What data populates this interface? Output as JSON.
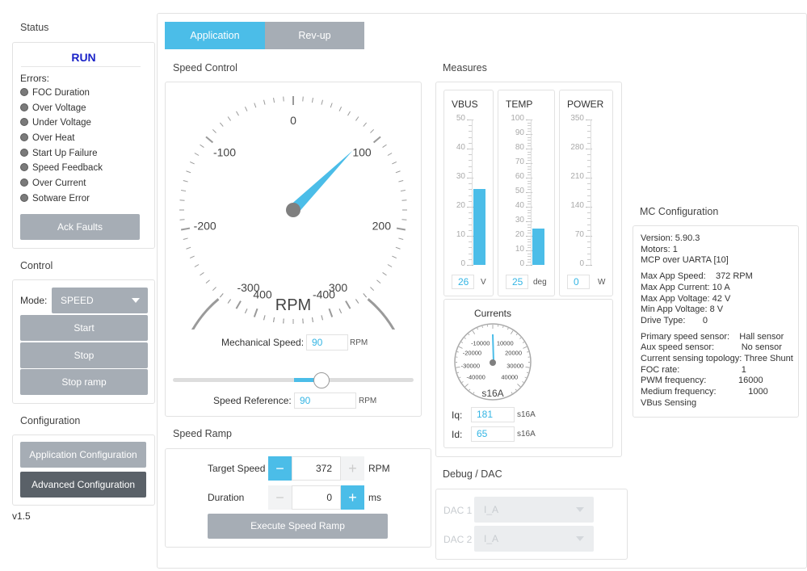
{
  "status": {
    "title": "Status",
    "state": "RUN",
    "errors_label": "Errors:",
    "errors": [
      "FOC Duration",
      "Over Voltage",
      "Under Voltage",
      "Over Heat",
      "Start Up Failure",
      "Speed Feedback",
      "Over Current",
      "Sotware Error"
    ],
    "ack_label": "Ack Faults"
  },
  "control": {
    "title": "Control",
    "mode_label": "Mode:",
    "mode_value": "SPEED",
    "start_label": "Start",
    "stop_label": "Stop",
    "stop_ramp_label": "Stop ramp"
  },
  "configuration": {
    "title": "Configuration",
    "app_config_label": "Application Configuration",
    "adv_config_label": "Advanced Configuration"
  },
  "version": "v1.5",
  "tabs": [
    {
      "label": "Application"
    },
    {
      "label": "Rev-up"
    }
  ],
  "speed_control": {
    "title": "Speed Control",
    "gauge_ticks": [
      "0",
      "100",
      "200",
      "300",
      "400",
      "-100",
      "-200",
      "-300",
      "-400"
    ],
    "gauge_unit": "RPM",
    "gauge_value": 90,
    "mech_label": "Mechanical Speed:",
    "mech_value": "90",
    "mech_unit": "RPM",
    "ref_label": "Speed Reference:",
    "ref_value": "90",
    "ref_unit": "RPM",
    "slider_value": 90
  },
  "speed_ramp": {
    "title": "Speed Ramp",
    "target_label": "Target Speed",
    "target_value": "372",
    "target_unit": "RPM",
    "duration_label": "Duration",
    "duration_value": "0",
    "duration_unit": "ms",
    "execute_label": "Execute Speed Ramp",
    "minus": "−",
    "plus": "+"
  },
  "measures": {
    "title": "Measures",
    "vbus": {
      "label": "VBUS",
      "ticks": [
        "50",
        "40",
        "30",
        "20",
        "10",
        "0"
      ],
      "value": "26",
      "unit": "V",
      "level": 26,
      "max": 50
    },
    "temp": {
      "label": "TEMP",
      "ticks": [
        "100",
        "90",
        "80",
        "70",
        "60",
        "50",
        "40",
        "30",
        "20",
        "10",
        "0"
      ],
      "value": "25",
      "unit": "deg",
      "level": 25,
      "max": 100
    },
    "power": {
      "label": "POWER",
      "ticks": [
        "350",
        "280",
        "210",
        "140",
        "70",
        "0"
      ],
      "value": "0",
      "unit": "W",
      "level": 0,
      "max": 350
    }
  },
  "currents": {
    "title": "Currents",
    "ticks": [
      "-10000",
      "10000",
      "-20000",
      "20000",
      "-30000",
      "30000",
      "-40000",
      "40000"
    ],
    "unit": "s16A",
    "iq_label": "Iq:",
    "iq_value": "181",
    "iq_unit": "s16A",
    "id_label": "Id:",
    "id_value": "65",
    "id_unit": "s16A"
  },
  "debug": {
    "title": "Debug / DAC",
    "dac1_label": "DAC 1",
    "dac1_value": "I_A",
    "dac2_label": "DAC 2",
    "dac2_value": "I_A"
  },
  "mc_config": {
    "title": "MC Configuration",
    "lines": [
      "Version: 5.90.3",
      "Motors: 1",
      "MCP over UARTA [10]",
      "Max App Speed:    372 RPM",
      "Max App Current: 10 A",
      "Max App Voltage: 42 V",
      "Min App Voltage: 8 V",
      "Drive Type:       0",
      "Primary speed sensor:    Hall sensor",
      "Aux speed sensor:           No sensor",
      "Current sensing topology: Three Shunt",
      "FOC rate:                         1",
      "PWM frequency:             16000",
      "Medium frequency:             1000",
      "VBus Sensing"
    ]
  },
  "colors": {
    "accent": "#4bbde8",
    "gray_button": "#a6adb5",
    "dark_button": "#5a6168",
    "run": "#1a23c8"
  }
}
